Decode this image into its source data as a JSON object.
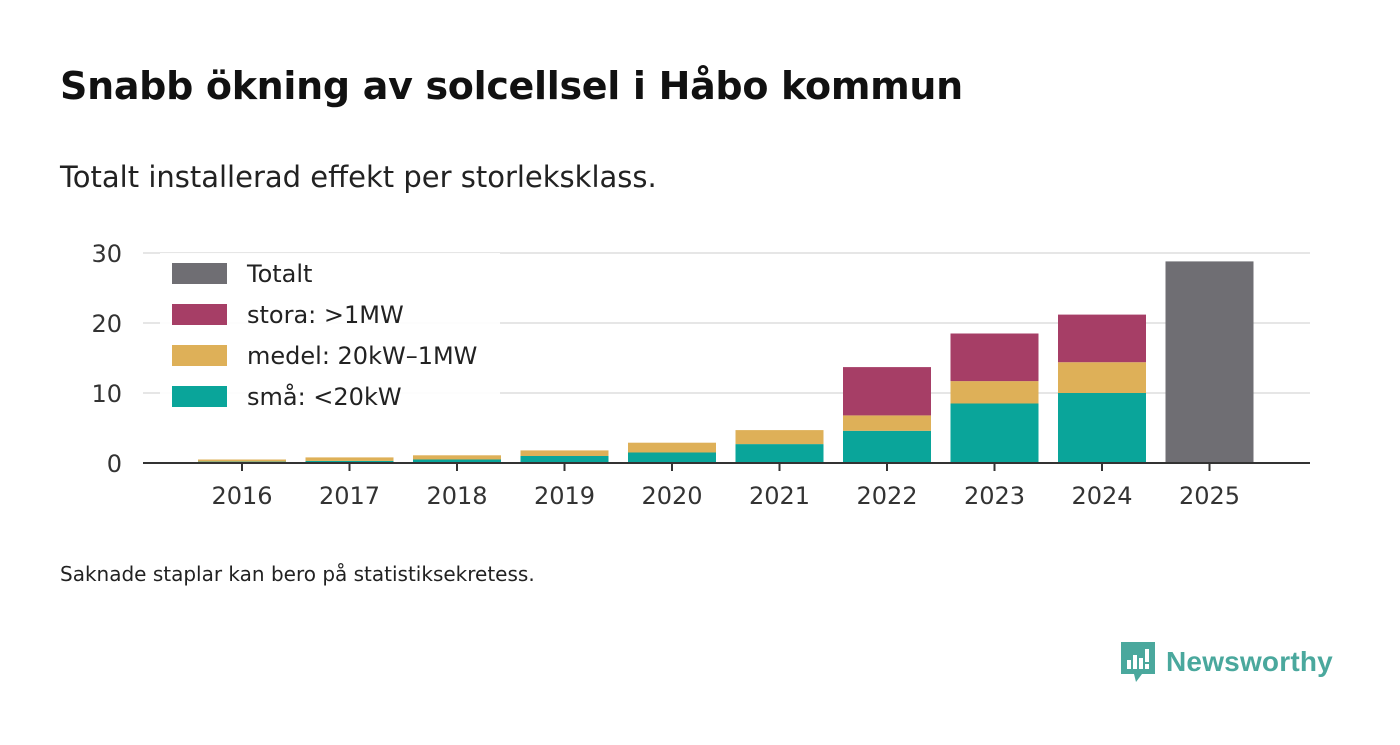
{
  "title": "Snabb ökning av solcellsel i Håbo kommun",
  "subtitle": "Totalt installerad effekt per storleksklass.",
  "footnote": "Saknade staplar kan bero på statistiksekretess.",
  "brand": {
    "name": "Newsworthy",
    "color": "#4aa89d"
  },
  "chart_data": {
    "type": "bar",
    "stacked": true,
    "categories": [
      "2016",
      "2017",
      "2018",
      "2019",
      "2020",
      "2021",
      "2022",
      "2023",
      "2024",
      "2025"
    ],
    "series": [
      {
        "name": "små: <20kW",
        "color": "#0aa59a",
        "values": [
          0.2,
          0.3,
          0.5,
          1.0,
          1.5,
          2.7,
          4.6,
          8.5,
          10.0,
          null
        ]
      },
      {
        "name": "medel: 20kW–1MW",
        "color": "#deb058",
        "values": [
          0.3,
          0.5,
          0.6,
          0.8,
          1.4,
          2.0,
          2.2,
          3.2,
          4.4,
          null
        ]
      },
      {
        "name": "stora: >1MW",
        "color": "#a63e66",
        "values": [
          null,
          null,
          null,
          null,
          null,
          null,
          6.9,
          6.8,
          6.8,
          null
        ]
      },
      {
        "name": "Totalt",
        "color": "#6f6e73",
        "values": [
          null,
          null,
          null,
          null,
          null,
          null,
          null,
          null,
          null,
          28.8
        ]
      }
    ],
    "legend_order": [
      "Totalt",
      "stora: >1MW",
      "medel: 20kW–1MW",
      "små: <20kW"
    ],
    "legend_position": "top-left",
    "y_ticks": [
      0,
      10,
      20,
      30
    ],
    "ylim": [
      0,
      30
    ],
    "grid": true,
    "xlabel": "",
    "ylabel": ""
  }
}
